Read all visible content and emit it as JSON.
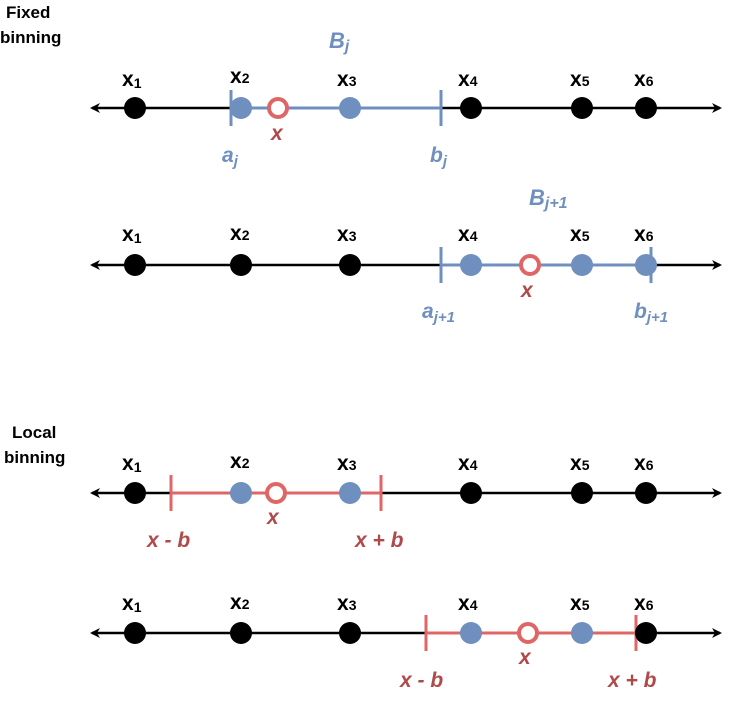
{
  "sections": {
    "fixed": {
      "line1": "Fixed",
      "line2": "binning"
    },
    "local": {
      "line1": "Local",
      "line2": "binning"
    }
  },
  "points": {
    "x1": {
      "base": "x",
      "sub": "1"
    },
    "x2": {
      "base": "x",
      "sub": "2"
    },
    "x3": {
      "base": "x",
      "sub": "3"
    },
    "x4": {
      "base": "x",
      "sub": "4"
    },
    "x5": {
      "base": "x",
      "sub": "5"
    },
    "x6": {
      "base": "x",
      "sub": "6"
    }
  },
  "query_label": "x",
  "fixed_bins": {
    "bin1": {
      "name": {
        "base": "B",
        "sub": "j"
      },
      "left": {
        "base": "a",
        "sub": "j"
      },
      "right": {
        "base": "b",
        "sub": "j"
      }
    },
    "bin2": {
      "name": {
        "base": "B",
        "sub": "j+1"
      },
      "left": {
        "base": "a",
        "sub": "j+1"
      },
      "right": {
        "base": "b",
        "sub": "j+1"
      }
    }
  },
  "local_window": {
    "left": "x - b",
    "right": "x + b"
  },
  "colors": {
    "axis": "#000000",
    "point": "#000000",
    "in_bin": "#6f8fbf",
    "query": "#e06666",
    "bin_line": "#6f8fbf",
    "window_line": "#e06666",
    "blue_text": "#6f8fbf",
    "red_text": "#b04a4a"
  }
}
